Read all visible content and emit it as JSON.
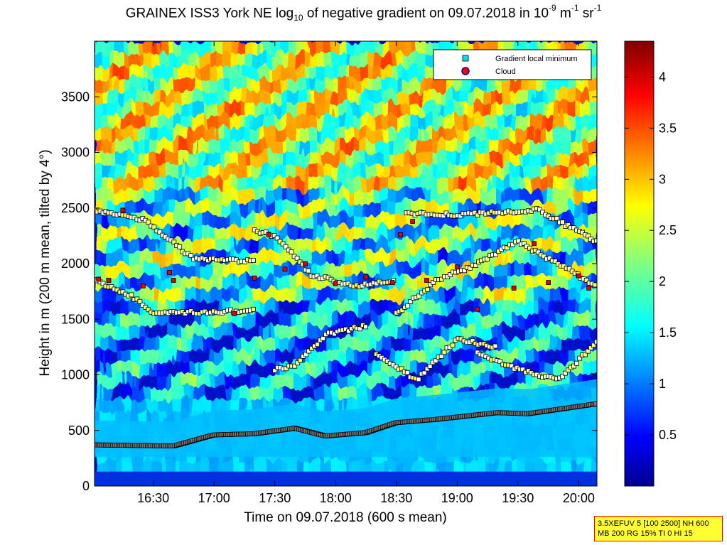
{
  "title_prefix": "GRAINEX ISS3 York NE log",
  "title_sub": "10",
  "title_mid": " of negative gradient on 09.07.2018 in 10",
  "title_sup1": "-9",
  "title_mid2": " m",
  "title_sup2": "-1",
  "title_mid3": " sr",
  "title_sup3": "-1",
  "chart_data": {
    "type": "heatmap",
    "xlabel": "Time on 09.07.2018 (600 s mean)",
    "ylabel": "Height in m (200 m mean, tilted by 4°)",
    "x_ticks": [
      "16:30",
      "17:00",
      "17:30",
      "18:00",
      "18:30",
      "19:00",
      "19:30",
      "20:00"
    ],
    "x_tick_minutes": [
      990,
      1020,
      1050,
      1080,
      1110,
      1140,
      1170,
      1200
    ],
    "xlim_minutes": [
      961,
      1209
    ],
    "y_ticks": [
      0,
      500,
      1000,
      1500,
      2000,
      2500,
      3000,
      3500
    ],
    "ylim": [
      0,
      4000
    ],
    "colorbar": {
      "ticks": [
        0.5,
        1,
        1.5,
        2,
        2.5,
        3,
        3.5,
        4
      ],
      "labels": [
        "0.5",
        "1",
        "1.5",
        "2",
        "2.5",
        "3",
        "3.5",
        "4"
      ],
      "range": [
        0,
        4.35
      ],
      "colormap": "jet"
    },
    "legend": {
      "placement": "top-right",
      "entries": [
        {
          "label": "Gradient local minimum",
          "marker": "square",
          "color": "#00e0e0"
        },
        {
          "label": "Cloud",
          "marker": "circle",
          "color": "#ff0000"
        }
      ]
    },
    "layers": [
      {
        "name": "surface",
        "base": 0,
        "top": 130,
        "value": 1.8
      },
      {
        "name": "boundary-layer top",
        "points": [
          [
            961,
            370
          ],
          [
            1000,
            360
          ],
          [
            1020,
            460
          ],
          [
            1040,
            470
          ],
          [
            1060,
            520
          ],
          [
            1075,
            450
          ],
          [
            1095,
            480
          ],
          [
            1110,
            570
          ],
          [
            1130,
            600
          ],
          [
            1160,
            660
          ],
          [
            1175,
            650
          ],
          [
            1209,
            740
          ]
        ]
      }
    ],
    "gradient_minima_bands": [
      [
        [
          961,
          1850
        ],
        [
          980,
          1700
        ],
        [
          990,
          1550
        ],
        [
          1010,
          1560
        ],
        [
          1040,
          1580
        ]
      ],
      [
        [
          961,
          2480
        ],
        [
          985,
          2400
        ],
        [
          1010,
          2040
        ],
        [
          1040,
          2020
        ]
      ],
      [
        [
          1050,
          1050
        ],
        [
          1060,
          1080
        ],
        [
          1075,
          1360
        ],
        [
          1095,
          1440
        ]
      ],
      [
        [
          1040,
          2300
        ],
        [
          1050,
          2250
        ],
        [
          1068,
          1900
        ],
        [
          1090,
          1800
        ],
        [
          1110,
          1850
        ]
      ],
      [
        [
          1100,
          1200
        ],
        [
          1120,
          950
        ],
        [
          1140,
          1320
        ],
        [
          1160,
          1250
        ]
      ],
      [
        [
          1110,
          1550
        ],
        [
          1130,
          1850
        ],
        [
          1150,
          2000
        ],
        [
          1170,
          2200
        ],
        [
          1209,
          1800
        ]
      ],
      [
        [
          1115,
          2450
        ],
        [
          1140,
          2440
        ],
        [
          1180,
          2480
        ],
        [
          1209,
          2200
        ]
      ],
      [
        [
          1150,
          1200
        ],
        [
          1170,
          1050
        ],
        [
          1190,
          950
        ],
        [
          1209,
          1300
        ]
      ]
    ],
    "cloud_points": [
      [
        963,
        1860
      ],
      [
        968,
        1850
      ],
      [
        985,
        1800
      ],
      [
        998,
        1920
      ],
      [
        1040,
        1870
      ],
      [
        1047,
        2260
      ],
      [
        1055,
        1950
      ],
      [
        1065,
        2000
      ],
      [
        1080,
        1820
      ],
      [
        1095,
        1880
      ],
      [
        1108,
        1830
      ],
      [
        1112,
        2260
      ],
      [
        1118,
        2380
      ],
      [
        1125,
        1850
      ],
      [
        1140,
        1970
      ],
      [
        1150,
        1590
      ],
      [
        1168,
        1780
      ],
      [
        1178,
        2180
      ],
      [
        1185,
        1830
      ],
      [
        1200,
        1890
      ],
      [
        1205,
        1780
      ],
      [
        1030,
        1550
      ],
      [
        1000,
        1850
      ],
      [
        975,
        2480
      ]
    ]
  },
  "param_box": {
    "line1": "3.5XEFUV 5 [100 2500] NH 600",
    "line2": "MB 200 RG 15% TI 0 HI 15"
  }
}
